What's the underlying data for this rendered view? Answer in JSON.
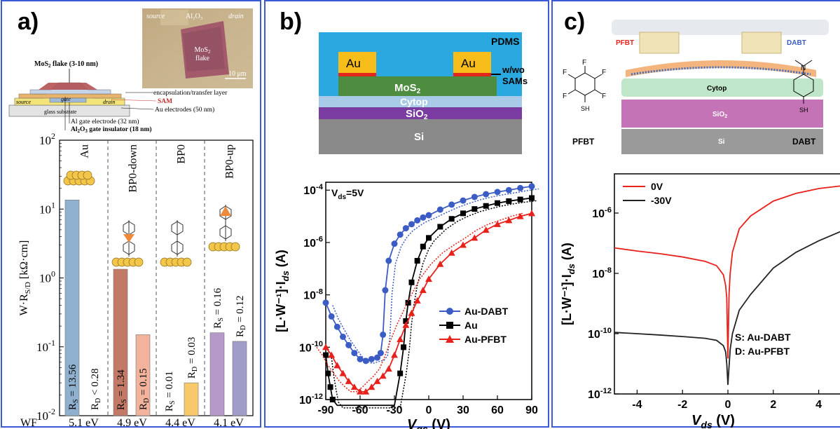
{
  "panels": {
    "a": {
      "label": "a)",
      "photo": {
        "source": "source",
        "al2o3": "Al₂O₃",
        "drain": "drain",
        "flake": "MoS₂\nflake",
        "scale": "10 μm"
      },
      "device": {
        "flake_label": "MoS₂ flake (3-10 nm)",
        "source": "source",
        "gate": "gate",
        "drain": "drain",
        "encapsulation": "encapsulation/transfer layer",
        "sam": "SAM",
        "au_electrodes": "Au electrodes (50 nm)",
        "glass": "glass substrate",
        "al_gate": "Al gate electrode (32 nm)",
        "al2o3_gate": "Al₂O₃ gate insulator (18 nm)"
      },
      "ylabel": "W·R",
      "ylabel_sub": "S/D",
      "ylabel_unit": " [kΩ·cm]",
      "wf_label": "WF",
      "groups": [
        {
          "name": "Au",
          "wf": "5.1 eV",
          "rs_label": "R",
          "rs_text": "S = 13.56",
          "rd_label": "R",
          "rd_text": "D < 0.28"
        },
        {
          "name": "BP0-down",
          "wf": "4.9 eV",
          "rs_label": "R",
          "rs_text": "S = 1.34",
          "rd_label": "R",
          "rd_text": "D = 0.15"
        },
        {
          "name": "BP0",
          "wf": "4.4 eV",
          "rs_label": "R",
          "rs_text": "S = 0.01",
          "rd_label": "R",
          "rd_text": "D = 0.03"
        },
        {
          "name": "BP0-up",
          "wf": "4.1 eV",
          "rs_label": "R",
          "rs_text": "S = 0.16",
          "rd_label": "R",
          "rd_text": "D = 0.12"
        }
      ],
      "ytick_base": "10",
      "ytick_exps": [
        "-2",
        "-1",
        "0",
        "1",
        "2"
      ]
    },
    "b": {
      "label": "b)",
      "schematic": {
        "pdms": "PDMS",
        "au1": "Au",
        "au2": "Au",
        "wwo": "w/wo",
        "sams": "SAMs",
        "mos2": "MoS₂",
        "cytop": "Cytop",
        "sio2": "SiO₂",
        "si": "Si"
      },
      "vds": "V",
      "vds_sub": "ds",
      "vds_val": "=5V",
      "ylabel": "[L·W⁻¹]·I",
      "ylabel_sub": "ds",
      "ylabel_unit": " (A)",
      "xlabel": "V",
      "xlabel_sub": "gs",
      "xlabel_unit": " (V)",
      "xticks": [
        "-90",
        "-60",
        "-30",
        "0",
        "30",
        "60",
        "90"
      ],
      "ytick_base": "10",
      "ytick_exps": [
        "-12",
        "-10",
        "-8",
        "-6",
        "-4"
      ],
      "legend": [
        "Au-DABT",
        "Au",
        "Au-PFBT"
      ]
    },
    "c": {
      "label": "c)",
      "molecules": {
        "left": "PFBT",
        "right": "DABT",
        "pfbt_tag": "PFBT",
        "dabt_tag": "DABT",
        "f": "F",
        "sh": "SH",
        "n": "N"
      },
      "layers": {
        "cytop": "Cytop",
        "sio2": "SiO₂",
        "si": "Si"
      },
      "legend": [
        "0V",
        "-30V"
      ],
      "note1": "S: Au-DABT",
      "note2": "D: Au-PFBT",
      "ylabel": "[L·W⁻¹]·I",
      "ylabel_sub": "ds",
      "ylabel_unit": " (A)",
      "xlabel": "V",
      "xlabel_sub": "ds",
      "xlabel_unit": " (V)",
      "xticks": [
        "-4",
        "-2",
        "0",
        "2",
        "4"
      ],
      "ytick_base": "10",
      "ytick_exps": [
        "-12",
        "-10",
        "-8",
        "-6"
      ]
    }
  },
  "colors": {
    "panel_border": "#3b5bd6",
    "rs_au": "#8fb1cf",
    "rs_down": "#c27966",
    "rs_bp0": "#f3e27a",
    "rs_up": "#b698c9",
    "rd_down": "#f2b39c",
    "rd_bp0": "#f7c96b",
    "rd_up": "#a09dc9",
    "dabt": "#3b5cc4",
    "au": "#000000",
    "pfbt": "#e8211b",
    "red_0v": "#e8211b",
    "black_30v": "#222222"
  },
  "chart_data": [
    {
      "type": "bar",
      "categories": [
        "Au",
        "BP0-down",
        "BP0",
        "BP0-up"
      ],
      "series": [
        {
          "name": "R_S",
          "values": [
            13.56,
            1.34,
            0.01,
            0.16
          ]
        },
        {
          "name": "R_D",
          "values": [
            0.28,
            0.15,
            0.03,
            0.12
          ]
        }
      ],
      "ylabel": "W·R_S/D [kΩ·cm]",
      "yscale": "log",
      "ylim": [
        0.01,
        100
      ],
      "xlabels_extra": [
        "5.1 eV",
        "4.9 eV",
        "4.4 eV",
        "4.1 eV"
      ]
    },
    {
      "type": "line",
      "xlabel": "V_gs (V)",
      "ylabel": "[L·W⁻¹]·I_ds (A)",
      "yscale": "log",
      "xlim": [
        -90,
        90
      ],
      "ylim": [
        1e-12,
        0.0002
      ],
      "series": [
        {
          "name": "Au-DABT",
          "x": [
            -90,
            -85,
            -80,
            -75,
            -70,
            -65,
            -60,
            -55,
            -50,
            -45,
            -42,
            -40,
            -38,
            -35,
            -30,
            -25,
            -20,
            -15,
            -10,
            -5,
            0,
            10,
            20,
            30,
            40,
            50,
            60,
            70,
            80,
            90
          ],
          "y": [
            5e-09,
            1.5e-09,
            6e-10,
            2.5e-10,
            1.2e-10,
            6e-11,
            3.5e-11,
            3e-11,
            3.5e-11,
            4e-11,
            6e-11,
            3e-10,
            1.5e-08,
            2e-07,
            9e-07,
            2e-06,
            3.5e-06,
            5e-06,
            7e-06,
            9e-06,
            1.1e-05,
            1.8e-05,
            2.8e-05,
            4e-05,
            5.5e-05,
            7e-05,
            8.5e-05,
            0.0001,
            0.00012,
            0.00014
          ]
        },
        {
          "name": "Au",
          "x": [
            -90,
            -88,
            -86,
            -84,
            -80,
            -60,
            -40,
            -30,
            -25,
            -22,
            -20,
            -18,
            -15,
            -10,
            -5,
            0,
            10,
            20,
            30,
            40,
            50,
            60,
            70,
            80,
            90
          ],
          "y": [
            5e-11,
            1e-11,
            3e-12,
            1e-12,
            6e-13,
            6e-13,
            6e-13,
            6e-13,
            1e-11,
            1e-10,
            1e-09,
            5e-09,
            3e-08,
            2e-07,
            7e-07,
            1.5e-06,
            4e-06,
            8e-06,
            1.3e-05,
            1.9e-05,
            2.5e-05,
            3.2e-05,
            3.8e-05,
            4.4e-05,
            5e-05
          ]
        },
        {
          "name": "Au-PFBT",
          "x": [
            -90,
            -85,
            -80,
            -75,
            -70,
            -65,
            -60,
            -55,
            -50,
            -45,
            -40,
            -35,
            -30,
            -25,
            -20,
            -15,
            -10,
            -5,
            0,
            10,
            20,
            30,
            40,
            50,
            60,
            70,
            80,
            90
          ],
          "y": [
            1e-10,
            5e-11,
            2e-11,
            1e-11,
            5e-12,
            3e-12,
            2e-12,
            2e-12,
            3e-12,
            5e-12,
            8e-12,
            1.5e-11,
            5e-11,
            2e-10,
            7e-10,
            2e-09,
            6e-09,
            1.5e-08,
            4e-08,
            1.5e-07,
            4e-07,
            8e-07,
            1.5e-06,
            3e-06,
            5e-06,
            7e-06,
            1e-05,
            1.3e-05
          ]
        }
      ],
      "annotations": [
        "V_ds=5V"
      ]
    },
    {
      "type": "line",
      "xlabel": "V_ds (V)",
      "ylabel": "[L·W⁻¹]·I_ds (A)",
      "yscale": "log",
      "xlim": [
        -5,
        5
      ],
      "ylim": [
        1e-12,
        2e-05
      ],
      "series": [
        {
          "name": "0V",
          "x": [
            -5,
            -4,
            -3,
            -2,
            -1,
            -0.5,
            -0.2,
            -0.1,
            -0.05,
            0,
            0.05,
            0.1,
            0.2,
            0.5,
            1,
            2,
            3,
            4,
            5
          ],
          "y": [
            7e-08,
            5.5e-08,
            4.5e-08,
            3.5e-08,
            2.5e-08,
            1.8e-08,
            9e-09,
            4e-09,
            1.5e-09,
            1.5e-11,
            2e-09,
            1e-08,
            5e-08,
            3e-07,
            8e-07,
            2.5e-06,
            4.5e-06,
            6.5e-06,
            8e-06
          ]
        },
        {
          "name": "-30V",
          "x": [
            -5,
            -4,
            -3,
            -2,
            -1,
            -0.5,
            -0.2,
            -0.1,
            -0.05,
            0,
            0.05,
            0.1,
            0.2,
            0.5,
            1,
            2,
            3,
            4,
            5
          ],
          "y": [
            1.1e-10,
            1e-10,
            9e-11,
            8e-11,
            7e-11,
            6e-11,
            4e-11,
            2.5e-11,
            1e-11,
            2e-12,
            8e-12,
            3e-11,
            1e-10,
            6e-10,
            2e-09,
            1.5e-08,
            5e-08,
            1.2e-07,
            2.5e-07
          ]
        }
      ],
      "annotations": [
        "S: Au-DABT",
        "D: Au-PFBT"
      ]
    }
  ]
}
